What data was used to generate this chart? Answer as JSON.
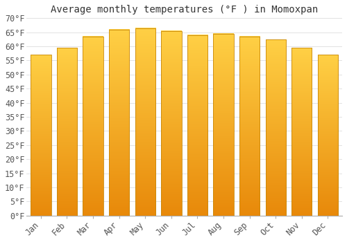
{
  "title": "Average monthly temperatures (°F ) in Momoxpan",
  "months": [
    "Jan",
    "Feb",
    "Mar",
    "Apr",
    "May",
    "Jun",
    "Jul",
    "Aug",
    "Sep",
    "Oct",
    "Nov",
    "Dec"
  ],
  "values": [
    57,
    59.5,
    63.5,
    66,
    66.5,
    65.5,
    64,
    64.5,
    63.5,
    62.5,
    59.5,
    57
  ],
  "bar_color_bottom": "#E8890A",
  "bar_color_top": "#FFD045",
  "bar_edge_color": "#C8880A",
  "background_color": "#ffffff",
  "grid_color": "#dddddd",
  "ylim": [
    0,
    70
  ],
  "yticks": [
    0,
    5,
    10,
    15,
    20,
    25,
    30,
    35,
    40,
    45,
    50,
    55,
    60,
    65,
    70
  ],
  "ylabel_suffix": "°F",
  "title_fontsize": 10,
  "tick_fontsize": 8.5,
  "font_family": "monospace"
}
